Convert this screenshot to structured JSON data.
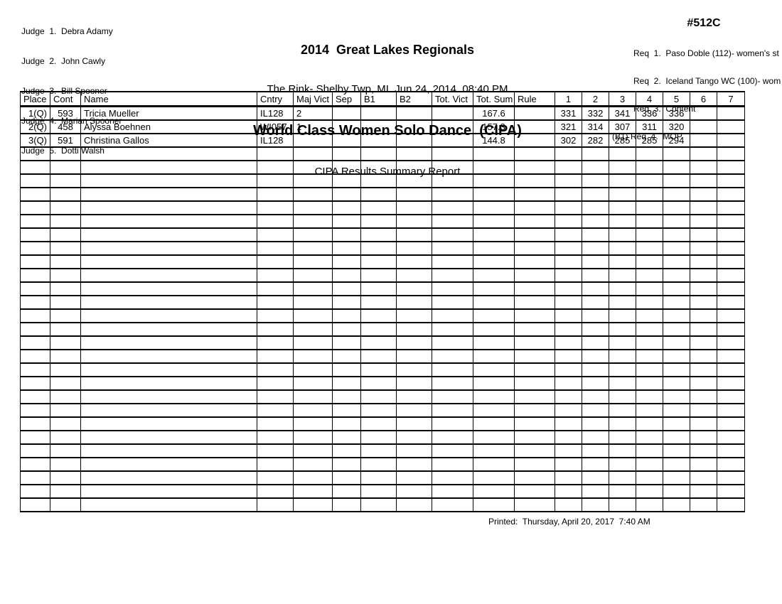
{
  "judges": [
    "Judge  1.  Debra Adamy",
    "Judge  2.  John Cawly",
    "Judge  3.  Bill Spooner",
    "Judge  4.  Marian Spooner",
    "Judge  5.  Dotti Walsh"
  ],
  "header": {
    "event_title": "2014  Great Lakes Regionals",
    "venue_line": "The Rink- Shelby Twp, MI  Jun 24, 2014  08:40 PM",
    "class_title": "World Class Women Solo Dance  (CIPA)",
    "report_title": "CIPA Results Summary Report",
    "event_number": "#512C",
    "requirements": [
      "Req  1.  Paso Doble (112)- women's st",
      "Req  2.  Iceland Tango WC (100)- wom",
      "Req  3.  Content",
      "(B1) Req  4.  MOP"
    ]
  },
  "table": {
    "columns": [
      "Place",
      "Cont",
      "Name",
      "Cntry",
      "Maj Vict",
      "Sep",
      "B1",
      "B2",
      "Tot. Vict",
      "Tot. Sum",
      "Rule",
      "1",
      "2",
      "3",
      "4",
      "5",
      "6",
      "7"
    ],
    "rows": [
      [
        "1(Q)",
        "593",
        "Tricia Mueller",
        "IL128",
        "2",
        "",
        "",
        "",
        "",
        "167.6",
        "",
        "331",
        "332",
        "341",
        "336",
        "336",
        "",
        ""
      ],
      [
        "2(Q)",
        "458",
        "Alyssa Boehnen",
        "WI057",
        "1",
        "",
        "",
        "",
        "",
        "157.3",
        "",
        "321",
        "314",
        "307",
        "311",
        "320",
        "",
        ""
      ],
      [
        "3(Q)",
        "591",
        "Christina Gallos",
        "IL128",
        "",
        "",
        "",
        "",
        "",
        "144.8",
        "",
        "302",
        "282",
        "285",
        "285",
        "294",
        "",
        ""
      ]
    ],
    "empty_rows": 27
  },
  "footer": {
    "printed_line": "Printed:  Thursday, April 20, 2017  7:40 AM"
  }
}
